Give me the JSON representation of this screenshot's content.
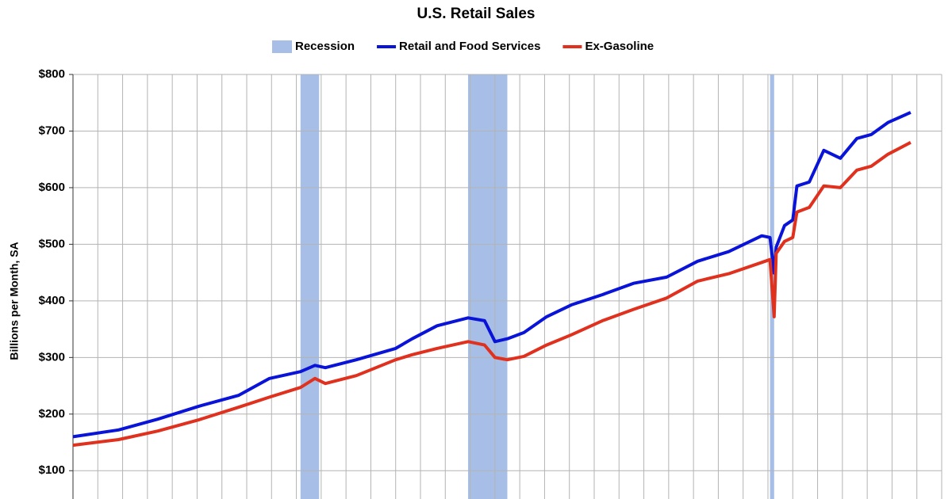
{
  "chart_data": {
    "type": "line",
    "title": "U.S. Retail Sales",
    "y_label": "Billions per Month, SA",
    "x": [
      0,
      22,
      41,
      61,
      80,
      95,
      110,
      117,
      122,
      137,
      156,
      164,
      176,
      191,
      199,
      204,
      210,
      218,
      229,
      241,
      256,
      271,
      287,
      302,
      317,
      333,
      337,
      339,
      340,
      344,
      348,
      350,
      356,
      363,
      371,
      379,
      386,
      394,
      405
    ],
    "xlim": [
      0,
      420
    ],
    "xticks": [
      0,
      12,
      24,
      36,
      48,
      60,
      72,
      84,
      96,
      108,
      120,
      132,
      144,
      156,
      168,
      180,
      192,
      204,
      216,
      228,
      240,
      252,
      264,
      276,
      288,
      300,
      312,
      324,
      336,
      348,
      360,
      372,
      384,
      396,
      408,
      420
    ],
    "ylim": [
      50,
      800
    ],
    "yticks": [
      {
        "value": 100,
        "label": "$100"
      },
      {
        "value": 200,
        "label": "$200"
      },
      {
        "value": 300,
        "label": "$300"
      },
      {
        "value": 400,
        "label": "$400"
      },
      {
        "value": 500,
        "label": "$500"
      },
      {
        "value": 600,
        "label": "$600"
      },
      {
        "value": 700,
        "label": "$700"
      },
      {
        "value": 800,
        "label": "$800"
      }
    ],
    "grid": true,
    "bands": {
      "name": "Recession",
      "color": "#a7bfe6",
      "spans": [
        [
          110,
          119
        ],
        [
          191,
          210
        ],
        [
          337,
          339
        ]
      ]
    },
    "series": [
      {
        "name": "Retail and Food Services",
        "color": "#0a14d8",
        "values": [
          160,
          172,
          191,
          214,
          233,
          263,
          275,
          286,
          282,
          296,
          316,
          333,
          356,
          370,
          365,
          328,
          333,
          344,
          372,
          393,
          411,
          431,
          442,
          470,
          487,
          515,
          512,
          449,
          495,
          533,
          543,
          603,
          610,
          666,
          652,
          687,
          694,
          715,
          733
        ]
      },
      {
        "name": "Ex-Gasoline",
        "color": "#e0301e",
        "values": [
          145,
          155,
          170,
          190,
          212,
          230,
          247,
          263,
          254,
          268,
          296,
          305,
          316,
          328,
          322,
          300,
          296,
          302,
          322,
          340,
          365,
          385,
          405,
          435,
          448,
          468,
          473,
          372,
          484,
          505,
          512,
          557,
          565,
          603,
          600,
          631,
          638,
          659,
          680
        ]
      }
    ]
  }
}
